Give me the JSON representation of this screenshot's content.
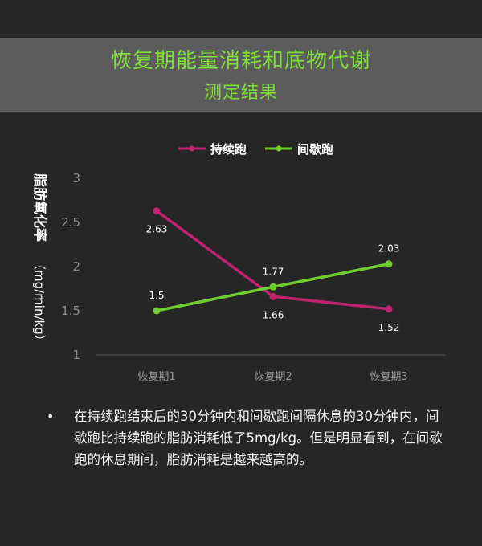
{
  "header": {
    "title": "恢复期能量消耗和底物代谢",
    "subtitle": "测定结果"
  },
  "chart_data": {
    "type": "line",
    "categories": [
      "恢复期1",
      "恢复期2",
      "恢复期3"
    ],
    "series": [
      {
        "name": "持续跑",
        "values": [
          2.63,
          1.66,
          1.52
        ],
        "color": "#c0246e"
      },
      {
        "name": "间歇跑",
        "values": [
          1.5,
          1.77,
          2.03
        ],
        "color": "#70cf30"
      }
    ],
    "ylabel": "脂肪氧化率（mg/min/kg）",
    "ylabel_main": "脂肪氧化率",
    "ylabel_unit": "（mg/min/kg）",
    "ylim": [
      1,
      3
    ],
    "yticks": [
      1,
      1.5,
      2,
      2.5,
      3
    ],
    "ytick_labels": [
      "1",
      "1.5",
      "2",
      "2.5",
      "3"
    ],
    "data_labels": [
      [
        "2.63",
        "1.66",
        "1.52"
      ],
      [
        "1.5",
        "1.77",
        "2.03"
      ]
    ],
    "grid": false,
    "legend": "top"
  },
  "note": {
    "bullet": "•",
    "text": "在持续跑结束后的30分钟内和间歇跑间隔休息的30分钟内，间歇跑比持续跑的脂肪消耗低了5mg/kg。但是明显看到，在间歇跑的休息期间，脂肪消耗是越来越高的。"
  }
}
